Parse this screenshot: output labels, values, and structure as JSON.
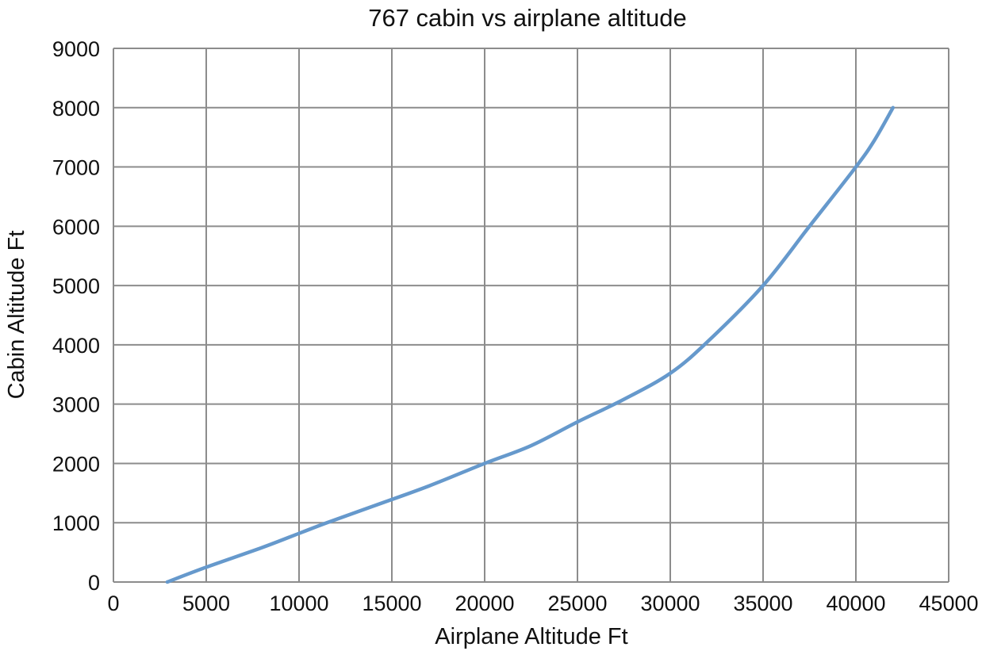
{
  "chart_data": {
    "type": "line",
    "title": "767 cabin vs airplane altitude",
    "xlabel": "Airplane Altitude Ft",
    "ylabel": "Cabin Altitude Ft",
    "xlim": [
      0,
      45000
    ],
    "ylim": [
      0,
      9000
    ],
    "x_ticks": [
      "0",
      "5000",
      "10000",
      "15000",
      "20000",
      "25000",
      "30000",
      "35000",
      "40000",
      "45000"
    ],
    "y_ticks": [
      "0",
      "1000",
      "2000",
      "3000",
      "4000",
      "5000",
      "6000",
      "7000",
      "8000",
      "9000"
    ],
    "grid": true,
    "legend": "none",
    "series": [
      {
        "color": "#6699cc",
        "x": [
          2900,
          5000,
          8000,
          10000,
          11500,
          14000,
          17000,
          20000,
          22500,
          25000,
          27500,
          30000,
          32000,
          35000,
          37500,
          40000,
          41000,
          42000
        ],
        "y": [
          0,
          250,
          580,
          820,
          1000,
          1280,
          1620,
          2000,
          2300,
          2700,
          3080,
          3520,
          4050,
          5000,
          6000,
          7000,
          7450,
          8000
        ]
      }
    ]
  }
}
